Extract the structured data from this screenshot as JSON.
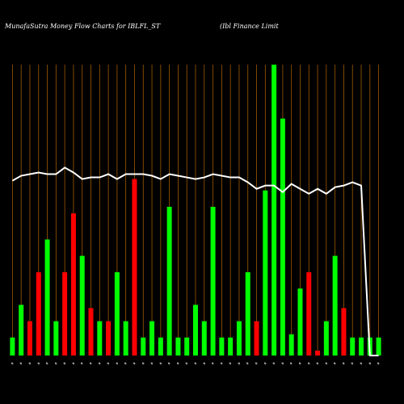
{
  "title_left": "MunafaSutra  Money Flow  Charts for IBLFL_ST",
  "title_right": "(Ibl Finance   Limit",
  "chart_data": {
    "type": "bar",
    "title": "MunafaSutra  Money Flow  Charts for IBLFL_ST",
    "categories": [
      "#",
      "#",
      "#",
      "#",
      "#",
      "#",
      "#",
      "#",
      "#",
      "#",
      "#",
      "#",
      "#",
      "#",
      "#",
      "#",
      "#",
      "#",
      "#",
      "#",
      "#",
      "#",
      "#",
      "#",
      "#",
      "#",
      "#",
      "#",
      "#",
      "#",
      "#",
      "#",
      "#",
      "#",
      "#",
      "#",
      "#",
      "#",
      "#",
      "#",
      "#",
      "#",
      "#"
    ],
    "bar_colors": [
      "#00ff00",
      "#00ff00",
      "#ff0000",
      "#ff0000",
      "#00ff00",
      "#00ff00",
      "#ff0000",
      "#ff0000",
      "#00ff00",
      "#ff0000",
      "#00ff00",
      "#ff0000",
      "#00ff00",
      "#00ff00",
      "#ff0000",
      "#00ff00",
      "#00ff00",
      "#00ff00",
      "#00ff00",
      "#00ff00",
      "#00ff00",
      "#00ff00",
      "#00ff00",
      "#00ff00",
      "#00ff00",
      "#00ff00",
      "#00ff00",
      "#00ff00",
      "#ff0000",
      "#00ff00",
      "#00ff00",
      "#00ff00",
      "#00ff00",
      "#00ff00",
      "#ff0000",
      "#ff0000",
      "#00ff00",
      "#00ff00",
      "#ff0000",
      "#00ff00",
      "#00ff00",
      "#00ff00",
      "#00ff00"
    ],
    "bar_values": [
      11,
      31,
      21,
      51,
      71,
      21,
      51,
      87,
      61,
      29,
      21,
      21,
      51,
      21,
      108,
      11,
      21,
      11,
      91,
      11,
      11,
      31,
      21,
      91,
      11,
      11,
      21,
      51,
      21,
      101,
      178,
      145,
      13,
      41,
      51,
      3,
      21,
      61,
      29,
      11,
      11,
      11,
      11
    ],
    "line_values": [
      107,
      110,
      111,
      112,
      111,
      111,
      115,
      112,
      108,
      109,
      109,
      111,
      108,
      111,
      111,
      111,
      110,
      108,
      111,
      110,
      109,
      108,
      109,
      111,
      110,
      109,
      109,
      106,
      102,
      104,
      104,
      100,
      105,
      102,
      99,
      102,
      99,
      103,
      104,
      106,
      104,
      0,
      0
    ],
    "ylim": [
      0,
      178
    ],
    "line_ylim": [
      0,
      178
    ],
    "grid": true,
    "colors": {
      "background": "#000000",
      "grid": "#a05a00",
      "line": "#ffffff",
      "up": "#00ff00",
      "down": "#ff0000"
    }
  }
}
